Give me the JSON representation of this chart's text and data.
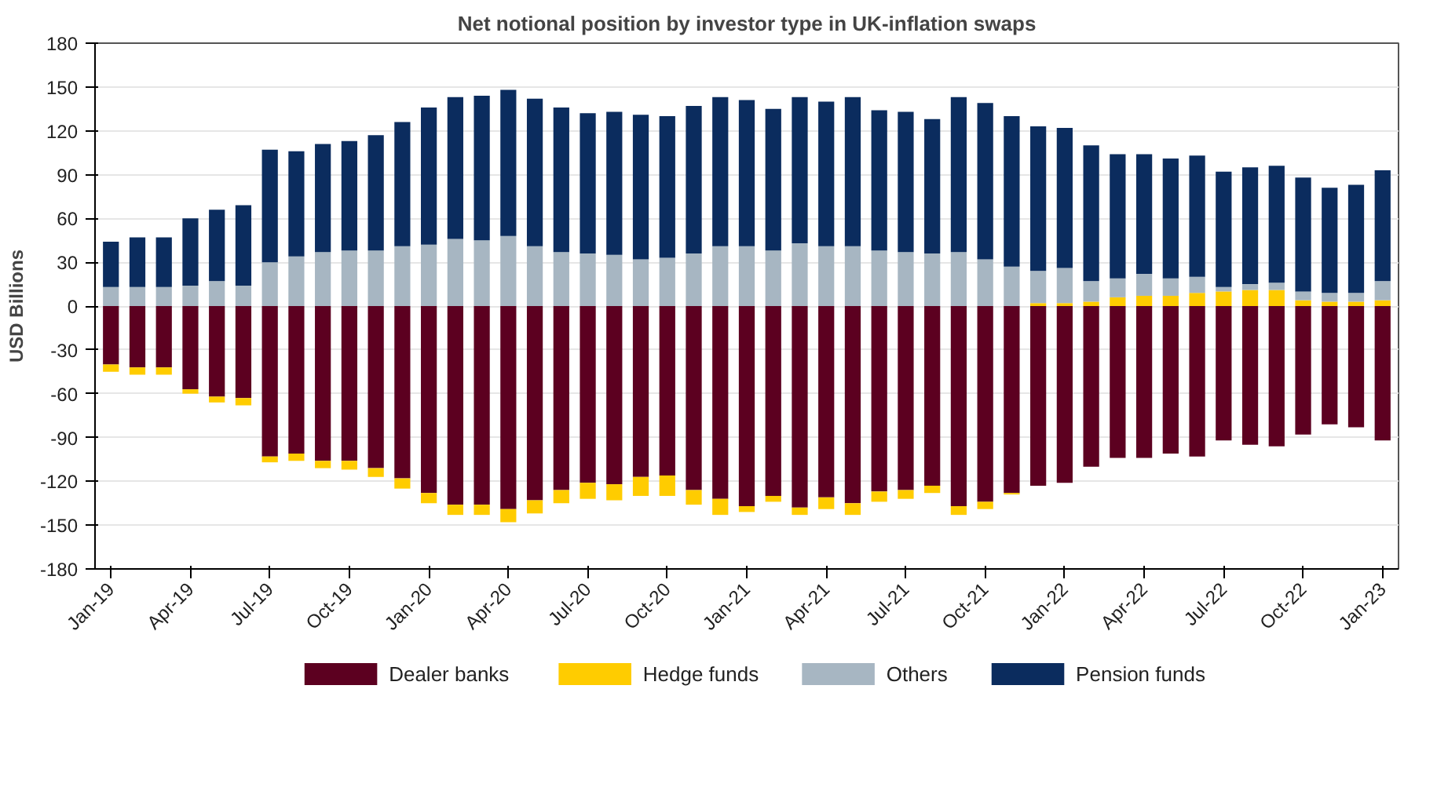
{
  "chart_data": {
    "type": "bar",
    "stacked": true,
    "title": "Net notional position by investor type in UK-inflation swaps",
    "ylabel": "USD Billions",
    "categories": [
      "Jan-19",
      null,
      null,
      "Apr-19",
      null,
      null,
      "Jul-19",
      null,
      null,
      "Oct-19",
      null,
      null,
      "Jan-20",
      null,
      null,
      "Apr-20",
      null,
      null,
      "Jul-20",
      null,
      null,
      "Oct-20",
      null,
      null,
      "Jan-21",
      null,
      null,
      "Apr-21",
      null,
      null,
      "Jul-21",
      null,
      null,
      "Oct-21",
      null,
      null,
      "Jan-22",
      null,
      null,
      "Apr-22",
      null,
      null,
      "Jul-22",
      null,
      null,
      "Oct-22",
      null,
      null,
      "Jan-23"
    ],
    "series": [
      {
        "name": "Dealer banks",
        "color": "#5c0020",
        "values": [
          -40,
          -42,
          -42,
          -57,
          -62,
          -63,
          -103,
          -101,
          -106,
          -106,
          -111,
          -118,
          -128,
          -136,
          -136,
          -139,
          -133,
          -126,
          -121,
          -122,
          -117,
          -116,
          -126,
          -132,
          -137,
          -130,
          -138,
          -131,
          -135,
          -127,
          -126,
          -123,
          -137,
          -134,
          -128,
          -123,
          -121,
          -110,
          -104,
          -104,
          -101,
          -103,
          -92,
          -95,
          -96,
          -88,
          -81,
          -83,
          -92
        ]
      },
      {
        "name": "Hedge funds",
        "color": "#ffcc00",
        "values": [
          -5,
          -5,
          -5,
          -3,
          -4,
          -5,
          -4,
          -5,
          -5,
          -6,
          -6,
          -7,
          -7,
          -7,
          -7,
          -9,
          -9,
          -9,
          -11,
          -11,
          -13,
          -14,
          -10,
          -11,
          -4,
          -4,
          -5,
          -8,
          -8,
          -7,
          -6,
          -5,
          -6,
          -5,
          -1,
          2,
          2,
          3,
          6,
          7,
          7,
          9,
          10,
          11,
          11,
          4,
          3,
          3,
          4
        ]
      },
      {
        "name": "Others",
        "color": "#a7b6c2",
        "values": [
          13,
          13,
          13,
          14,
          17,
          14,
          30,
          34,
          37,
          38,
          38,
          41,
          42,
          46,
          45,
          48,
          41,
          37,
          36,
          35,
          32,
          33,
          36,
          41,
          41,
          38,
          43,
          41,
          41,
          38,
          37,
          36,
          37,
          32,
          27,
          22,
          24,
          14,
          13,
          15,
          12,
          11,
          3,
          4,
          5,
          6,
          6,
          6,
          13
        ]
      },
      {
        "name": "Pension funds",
        "color": "#0b2c5e",
        "values": [
          31,
          34,
          34,
          46,
          49,
          55,
          77,
          72,
          74,
          75,
          79,
          85,
          94,
          97,
          99,
          100,
          101,
          99,
          96,
          98,
          99,
          97,
          101,
          102,
          100,
          97,
          100,
          99,
          102,
          96,
          96,
          92,
          106,
          107,
          103,
          99,
          96,
          93,
          85,
          82,
          82,
          83,
          79,
          80,
          80,
          78,
          72,
          74,
          76
        ]
      }
    ],
    "ylim": [
      -180,
      180
    ],
    "yticks": [
      -180,
      -150,
      -120,
      -90,
      -60,
      -30,
      0,
      30,
      60,
      90,
      120,
      150,
      180
    ],
    "grid": "y",
    "legend": "bottom"
  }
}
